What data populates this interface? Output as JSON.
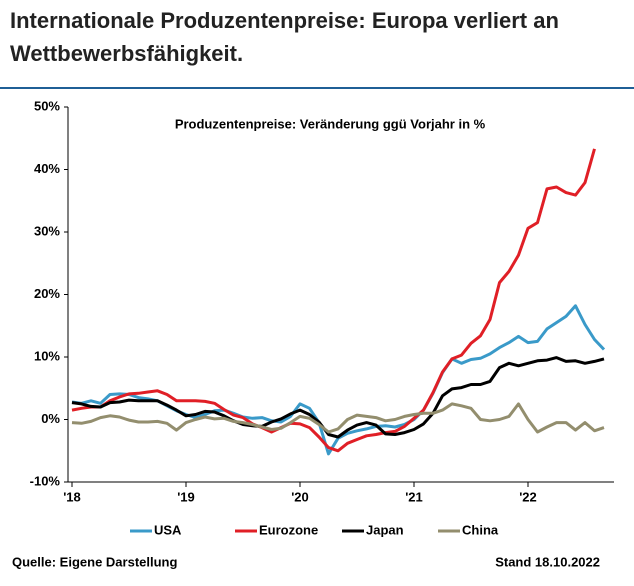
{
  "chart_data": {
    "type": "line",
    "title": "Internationale Produzentenpreise: Europa verliert an Wettbewerbsfähigkeit.",
    "subtitle": "Produzentenpreise: Veränderung ggü Vorjahr in %",
    "source": "Quelle: Eigene Darstellung",
    "date_note": "Stand 18.10.2022",
    "categories": [
      "'18",
      null,
      null,
      null,
      null,
      null,
      null,
      null,
      null,
      null,
      null,
      null,
      "'19",
      null,
      null,
      null,
      null,
      null,
      null,
      null,
      null,
      null,
      null,
      null,
      "'20",
      null,
      null,
      null,
      null,
      null,
      null,
      null,
      null,
      null,
      null,
      null,
      "'21",
      null,
      null,
      null,
      null,
      null,
      null,
      null,
      null,
      null,
      null,
      null,
      "'22",
      null,
      null,
      null,
      null,
      null,
      null,
      null,
      null
    ],
    "ylim": [
      -10,
      50
    ],
    "yticks": [
      {
        "value": -10,
        "label": "-10%"
      },
      {
        "value": 0,
        "label": "0%"
      },
      {
        "value": 10,
        "label": "10%"
      },
      {
        "value": 20,
        "label": "20%"
      },
      {
        "value": 30,
        "label": "30%"
      },
      {
        "value": 40,
        "label": "40%"
      },
      {
        "value": 50,
        "label": "50%"
      }
    ],
    "series": [
      {
        "name": "USA",
        "color": "#3a9ac9",
        "values": [
          2.8,
          2.6,
          3.0,
          2.6,
          4.0,
          4.1,
          4.0,
          3.5,
          3.3,
          3.0,
          2.2,
          1.4,
          0.8,
          0.3,
          0.8,
          1.4,
          1.5,
          1.0,
          0.4,
          0.2,
          0.3,
          -0.2,
          -0.4,
          0.5,
          2.5,
          1.8,
          -0.5,
          -5.5,
          -3.0,
          -2.2,
          -1.8,
          -1.5,
          -1.1,
          -1.0,
          -1.2,
          -0.8,
          0.0,
          1.5,
          4.2,
          7.5,
          9.7,
          9.0,
          9.6,
          9.8,
          10.5,
          11.5,
          12.3,
          13.3,
          12.3,
          12.5,
          14.5,
          15.5,
          16.5,
          18.2,
          15.2,
          12.8,
          11.2
        ]
      },
      {
        "name": "Eurozone",
        "color": "#e01f26",
        "values": [
          1.5,
          1.8,
          2.0,
          2.0,
          3.0,
          3.6,
          4.1,
          4.2,
          4.4,
          4.6,
          4.0,
          3.0,
          3.0,
          3.0,
          2.9,
          2.6,
          1.6,
          0.7,
          0.3,
          -0.7,
          -1.3,
          -2.0,
          -1.3,
          -0.6,
          -0.7,
          -1.3,
          -2.8,
          -4.5,
          -5.0,
          -3.8,
          -3.2,
          -2.6,
          -2.4,
          -2.1,
          -1.9,
          -1.1,
          0.2,
          1.5,
          4.3,
          7.6,
          9.7,
          10.3,
          12.2,
          13.4,
          16.0,
          21.9,
          23.7,
          26.3,
          30.6,
          31.5,
          36.9,
          37.2,
          36.3,
          35.9,
          37.9,
          43.3,
          null
        ]
      },
      {
        "name": "Japan",
        "color": "#000000",
        "values": [
          2.7,
          2.5,
          2.1,
          2.0,
          2.7,
          2.8,
          3.1,
          3.0,
          3.0,
          3.0,
          2.3,
          1.5,
          0.6,
          0.8,
          1.3,
          1.2,
          0.6,
          -0.2,
          -0.8,
          -1.0,
          -1.1,
          -0.4,
          0.1,
          0.9,
          1.5,
          0.8,
          -0.4,
          -2.4,
          -2.8,
          -1.7,
          -0.9,
          -0.5,
          -0.9,
          -2.3,
          -2.4,
          -2.1,
          -1.6,
          -0.7,
          1.0,
          3.8,
          4.9,
          5.1,
          5.6,
          5.6,
          6.1,
          8.3,
          9.0,
          8.6,
          9.0,
          9.4,
          9.5,
          9.9,
          9.3,
          9.4,
          9.0,
          9.3,
          9.7
        ]
      },
      {
        "name": "China",
        "color": "#938e6e",
        "values": [
          -0.5,
          -0.6,
          -0.3,
          0.3,
          0.6,
          0.4,
          -0.1,
          -0.4,
          -0.4,
          -0.3,
          -0.6,
          -1.7,
          -0.5,
          0.0,
          0.4,
          0.1,
          0.2,
          -0.3,
          -0.5,
          -0.8,
          -1.2,
          -1.6,
          -1.4,
          -0.5,
          0.5,
          0.2,
          -0.8,
          -2.0,
          -1.5,
          0.0,
          0.7,
          0.5,
          0.3,
          -0.2,
          0.0,
          0.5,
          0.8,
          1.0,
          1.0,
          1.5,
          2.5,
          2.2,
          1.8,
          0.0,
          -0.2,
          0.0,
          0.5,
          2.5,
          0.0,
          -2.0,
          -1.2,
          -0.5,
          -0.5,
          -1.7,
          -0.5,
          -1.8,
          -1.3
        ]
      }
    ]
  }
}
